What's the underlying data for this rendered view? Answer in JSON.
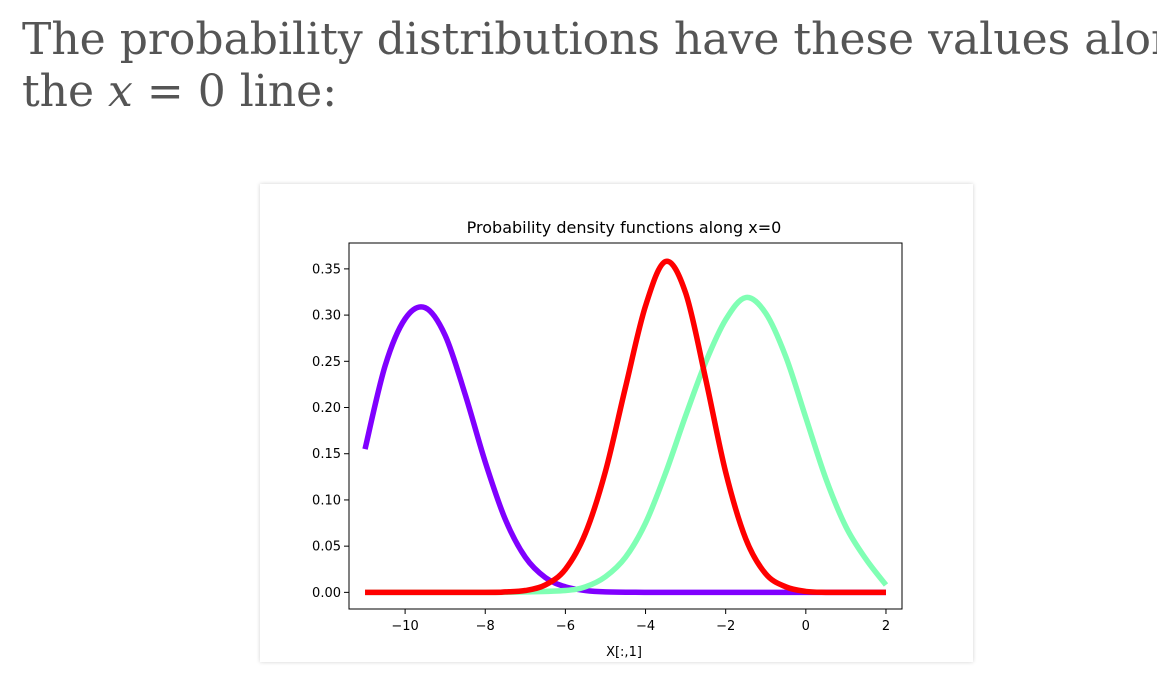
{
  "intro": {
    "line1": "The probability distributions have these values along",
    "line2_prefix": "the ",
    "math_var": "x",
    "math_rest": " = 0 line:"
  },
  "chart_data": {
    "type": "line",
    "title": "Probability density functions along x=0",
    "xlabel": "X[:,1]",
    "ylabel": "",
    "xlim": [
      -11.4,
      2.4
    ],
    "ylim": [
      -0.018,
      0.378
    ],
    "x_ticks": [
      -10,
      -8,
      -6,
      -4,
      -2,
      0,
      2
    ],
    "x_tick_labels": [
      "−10",
      "−8",
      "−6",
      "−4",
      "−2",
      "0",
      "2"
    ],
    "y_ticks": [
      0.0,
      0.05,
      0.1,
      0.15,
      0.2,
      0.25,
      0.3,
      0.35
    ],
    "y_tick_labels": [
      "0.00",
      "0.05",
      "0.10",
      "0.15",
      "0.20",
      "0.25",
      "0.30",
      "0.35"
    ],
    "grid": false,
    "legend": false,
    "x_range": [
      -11,
      2
    ],
    "series": [
      {
        "color": "#8000ff",
        "draw_order": 1,
        "x": [
          -11,
          -10.5,
          -10,
          -9.5,
          -9,
          -8.5,
          -8,
          -7.5,
          -7,
          -6.5,
          -6,
          -5.5,
          -5,
          -4,
          -3,
          -2,
          -1,
          0,
          1,
          2
        ],
        "y": [
          0.155,
          0.245,
          0.296,
          0.308,
          0.278,
          0.214,
          0.141,
          0.079,
          0.038,
          0.016,
          0.006,
          0.002,
          0.0005,
          0.0,
          0.0,
          0.0,
          0.0,
          0.0,
          0.0,
          0.0
        ]
      },
      {
        "color": "#80ffb4",
        "draw_order": 2,
        "x": [
          -11,
          -8,
          -7,
          -6,
          -5.5,
          -5,
          -4.5,
          -4,
          -3.5,
          -3,
          -2.5,
          -2,
          -1.5,
          -1,
          -0.5,
          0,
          0.5,
          1,
          1.5,
          2
        ],
        "y": [
          0.0,
          0.0,
          0.0005,
          0.002,
          0.006,
          0.017,
          0.038,
          0.075,
          0.129,
          0.191,
          0.249,
          0.295,
          0.319,
          0.302,
          0.255,
          0.189,
          0.123,
          0.071,
          0.036,
          0.008
        ]
      },
      {
        "color": "#ff0000",
        "draw_order": 3,
        "x": [
          -11,
          -8,
          -7.5,
          -7,
          -6.5,
          -6,
          -5.5,
          -5,
          -4.5,
          -4,
          -3.5,
          -3,
          -2.5,
          -2,
          -1.5,
          -1,
          -0.5,
          0,
          0.5,
          1,
          2
        ],
        "y": [
          0.0,
          0.0,
          0.0005,
          0.002,
          0.008,
          0.025,
          0.064,
          0.131,
          0.222,
          0.31,
          0.358,
          0.324,
          0.231,
          0.13,
          0.058,
          0.02,
          0.006,
          0.001,
          0.0,
          0.0,
          0.0
        ]
      }
    ]
  }
}
